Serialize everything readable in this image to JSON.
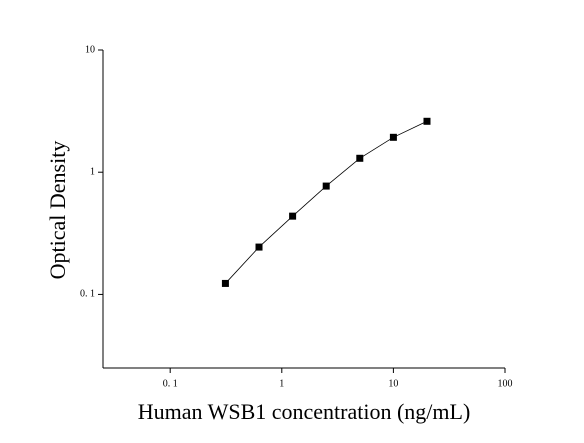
{
  "chart_data": {
    "type": "line",
    "markers": true,
    "log_x": true,
    "log_y": true,
    "xlabel": "Human WSB1 concentration (ng/mL)",
    "ylabel": "Optical Density",
    "x": [
      0.3125,
      0.625,
      1.25,
      2.5,
      5,
      10,
      20
    ],
    "values": [
      0.123,
      0.244,
      0.437,
      0.77,
      1.3,
      1.93,
      2.61
    ],
    "color": "#000000",
    "xlim": [
      0.025,
      100
    ],
    "xticks": [
      {
        "value": 0.1,
        "label": "0. 1"
      },
      1,
      10,
      100
    ],
    "ylim": [
      0.025,
      10
    ],
    "yticks": [
      {
        "value": 0.1,
        "label": "0. 1"
      },
      1,
      10
    ]
  }
}
